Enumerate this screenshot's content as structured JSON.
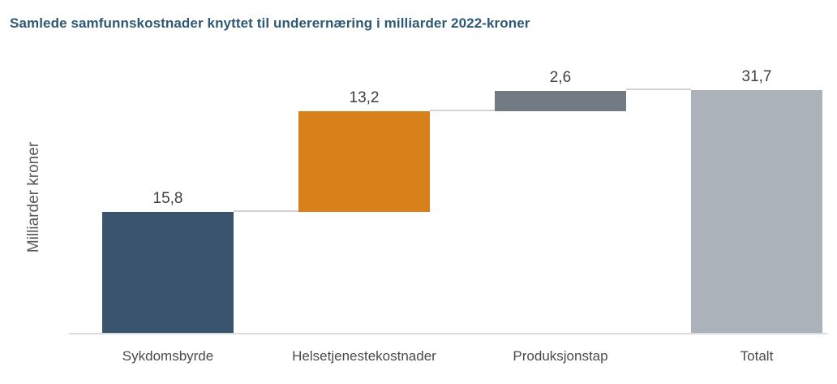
{
  "title": "Samlede samfunnskostnader knyttet til underernæring i milliarder 2022-kroner",
  "chart_data": {
    "type": "bar",
    "subtype": "waterfall",
    "title": "Samlede samfunnskostnader knyttet til underernæring i milliarder 2022-kroner",
    "xlabel": "",
    "ylabel": "Milliarder kroner",
    "ylim": [
      0,
      33
    ],
    "grid": false,
    "legend": "none",
    "axis_ticks_visible": false,
    "categories": [
      "Sykdomsbyrde",
      "Helsetjenestekostnader",
      "Produksjonstap",
      "Totalt"
    ],
    "values": [
      15.8,
      13.2,
      2.6,
      31.7
    ],
    "value_labels": [
      "15,8",
      "13,2",
      "2,6",
      "31,7"
    ],
    "bar_starts": [
      0,
      15.8,
      29.0,
      0
    ],
    "connector_levels": [
      15.8,
      29.0,
      31.7
    ],
    "bar_colors": [
      "#3a546f",
      "#d8801a",
      "#727b83",
      "#acb2b9"
    ]
  },
  "colors": {
    "background": "#ffffff",
    "title_text": "#2e5873",
    "data_label_text": "#3f3f3f",
    "category_label_text": "#4a4a4a",
    "y_axis_label_text": "#595959",
    "axis_line": "#dcdcdc",
    "connector_line": "#d2d2d2"
  }
}
